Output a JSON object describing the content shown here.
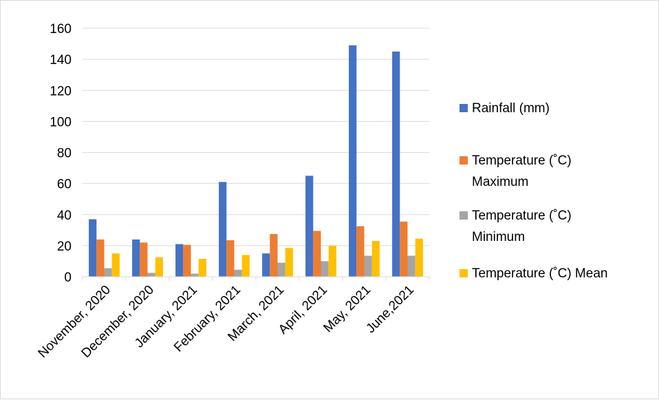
{
  "chart_data": {
    "type": "bar",
    "categories": [
      "November, 2020",
      "December, 2020",
      "January, 2021",
      "February, 2021",
      "March, 2021",
      "April, 2021",
      "May, 2021",
      "June,2021"
    ],
    "series": [
      {
        "name": "Rainfall (mm)",
        "color": "#4472C4",
        "values": [
          37,
          24,
          21,
          61,
          15,
          65,
          149,
          145
        ]
      },
      {
        "name": "Temperature (˚C) Maximum",
        "color": "#ED7D31",
        "values": [
          24,
          22,
          20.5,
          23.5,
          27.5,
          29.5,
          32.5,
          35.5
        ]
      },
      {
        "name": "Temperature (˚C) Minimum",
        "color": "#A5A5A5",
        "values": [
          5.5,
          2.5,
          2,
          4.5,
          9,
          10,
          13.5,
          13.5
        ]
      },
      {
        "name": "Temperature (˚C) Mean",
        "color": "#FFC000",
        "values": [
          15,
          12.5,
          11.5,
          14,
          18.5,
          20,
          23,
          24.5
        ]
      }
    ],
    "ylim": [
      0,
      160
    ],
    "yticks": [
      0,
      20,
      40,
      60,
      80,
      100,
      120,
      140,
      160
    ],
    "grid": true,
    "legend": "right",
    "legend_lines": [
      [
        "Rainfall (mm)"
      ],
      [
        "Temperature (˚C)",
        "Maximum"
      ],
      [
        "Temperature (˚C)",
        "Minimum"
      ],
      [
        "Temperature (˚C) Mean"
      ]
    ]
  }
}
